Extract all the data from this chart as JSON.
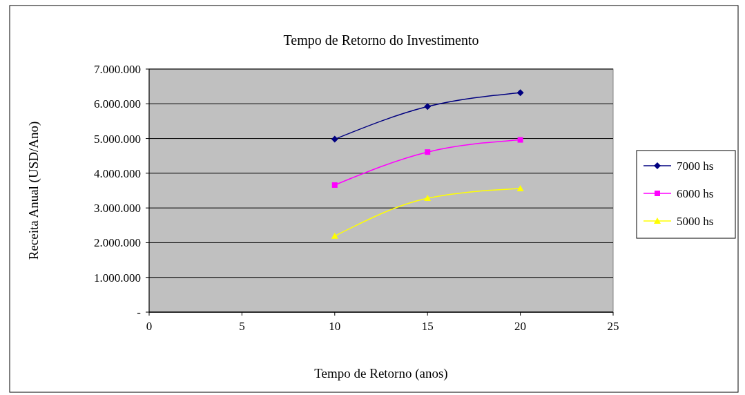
{
  "chart_data": {
    "type": "line",
    "title": "Tempo de Retorno do Investimento",
    "xlabel": "Tempo de Retorno (anos)",
    "ylabel": "Receita Anual (USD/Ano)",
    "x": [
      10,
      15,
      20
    ],
    "series": [
      {
        "name": "7000 hs",
        "color": "#000080",
        "marker": "diamond",
        "values": [
          4980000,
          5920000,
          6320000
        ]
      },
      {
        "name": "6000 hs",
        "color": "#ff00ff",
        "marker": "square",
        "values": [
          3660000,
          4610000,
          4960000
        ]
      },
      {
        "name": "5000 hs",
        "color": "#ffff00",
        "marker": "triangle",
        "values": [
          2190000,
          3280000,
          3560000
        ]
      }
    ],
    "xlim": [
      0,
      25
    ],
    "xticks": [
      0,
      5,
      10,
      15,
      20,
      25
    ],
    "ylim": [
      0,
      7000000
    ],
    "yticks": [
      {
        "value": 0,
        "label": "-"
      },
      {
        "value": 1000000,
        "label": "1.000.000"
      },
      {
        "value": 2000000,
        "label": "2.000.000"
      },
      {
        "value": 3000000,
        "label": "3.000.000"
      },
      {
        "value": 4000000,
        "label": "4.000.000"
      },
      {
        "value": 5000000,
        "label": "5.000.000"
      },
      {
        "value": 6000000,
        "label": "6.000.000"
      },
      {
        "value": 7000000,
        "label": "7.000.000"
      }
    ],
    "grid": "y",
    "legend": "right",
    "line_style": "solid"
  }
}
